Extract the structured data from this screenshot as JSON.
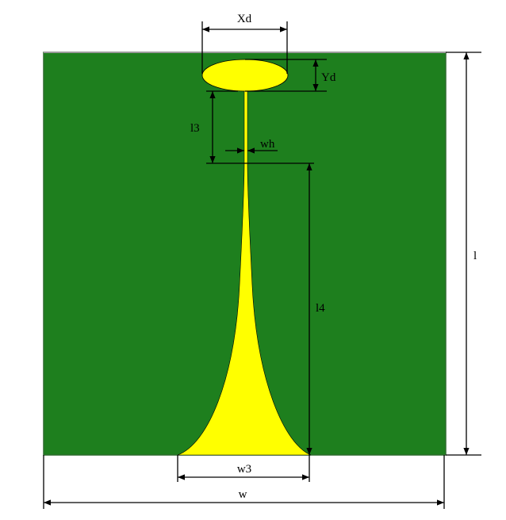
{
  "colors": {
    "substrate": "#1e7f1e",
    "substrate_edge": "#2f6b2f",
    "metal": "#ffff00",
    "metal_edge": "#000000",
    "dimension": "#000000"
  },
  "labels": {
    "xd": "Xd",
    "yd": "Yd",
    "l3": "l3",
    "wh": "wh",
    "l4": "l4",
    "l": "l",
    "w3": "w3",
    "w": "w"
  }
}
